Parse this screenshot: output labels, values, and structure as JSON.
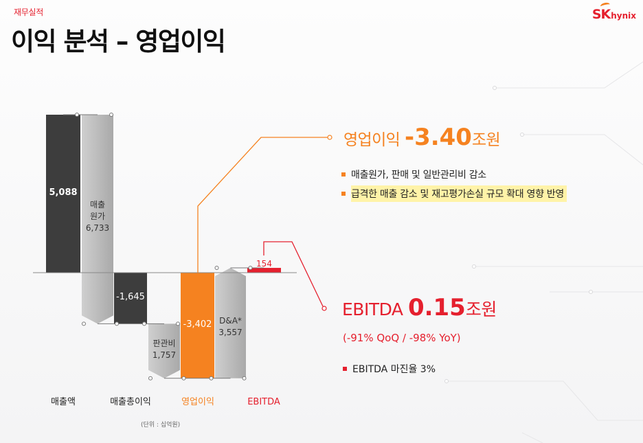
{
  "header": {
    "section": "재무실적",
    "title": "이익 분석 – 영업이익",
    "logo_sk": "SK",
    "logo_hynix": "hynix"
  },
  "colors": {
    "dark": "#3d3d3d",
    "gray": "#b4b4b4",
    "orange": "#f58220",
    "red": "#e5202e"
  },
  "chart_data": {
    "type": "bar",
    "subtype": "waterfall",
    "categories": [
      "매출액",
      "매출총이익",
      "영업이익",
      "EBITDA"
    ],
    "steps": [
      {
        "label": "",
        "value": 5088,
        "value_label": "5,088",
        "role": "total"
      },
      {
        "label": "매출\n원가",
        "value": -6733,
        "value_label": "6,733",
        "role": "decrease"
      },
      {
        "label": "",
        "value": -1645,
        "value_label": "-1,645",
        "role": "total"
      },
      {
        "label": "판관비",
        "value": -1757,
        "value_label": "1,757",
        "role": "decrease"
      },
      {
        "label": "",
        "value": -3402,
        "value_label": "-3,402",
        "role": "total"
      },
      {
        "label": "D&A*",
        "value": 3557,
        "value_label": "3,557",
        "role": "increase"
      },
      {
        "label": "",
        "value": 154,
        "value_label": "154",
        "role": "total"
      }
    ],
    "unit_note": "(단위 : 십억원)"
  },
  "callouts": {
    "operating": {
      "prefix": "영업이익 ",
      "value": "-3.40",
      "unit": "조원",
      "bullets": [
        "매출원가, 판매 및 일반관리비 감소",
        "급격한 매출 감소 및 재고평가손실 규모 확대 영향 반영"
      ]
    },
    "ebitda": {
      "prefix": "EBITDA ",
      "value": "0.15",
      "unit": "조원",
      "sub": "(-91% QoQ / -98% YoY)",
      "bullet": "EBITDA 마진율 3%"
    }
  }
}
